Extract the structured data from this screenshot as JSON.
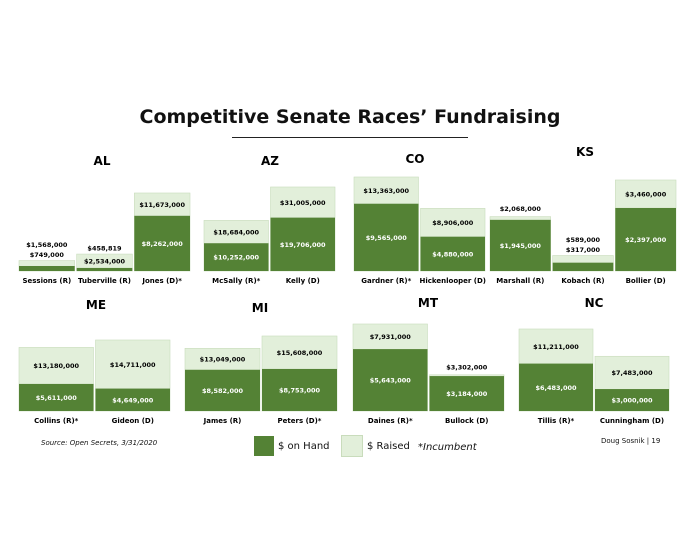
{
  "title": "Competitive Senate Races’ Fundraising",
  "source": "Source: Open Secrets, 3/31/2020",
  "credit": "Doug Sosnik | 19",
  "legend": {
    "on_hand": "$ on Hand",
    "raised": "$ Raised",
    "incumbent_note": "*Incumbent"
  },
  "colors": {
    "on_hand": "#548235",
    "raised": "#e2efda",
    "raised_border": "#c9dcbc"
  },
  "chart_data": {
    "type": "bar",
    "series": [
      {
        "name": "$ on Hand",
        "key": "onhand"
      },
      {
        "name": "$ Raised",
        "key": "raised"
      }
    ],
    "states": [
      {
        "state": "AL",
        "candidates": [
          {
            "name": "Sessions (R)",
            "raised": 1568000,
            "onhand": 749000,
            "raised_label": "$1,568,000",
            "onhand_label": "$749,000"
          },
          {
            "name": "Tuberville (R)",
            "raised": 2534000,
            "onhand": 458819,
            "raised_label": "$2,534,000",
            "onhand_label": "$458,819"
          },
          {
            "name": "Jones (D)*",
            "raised": 11673000,
            "onhand": 8262000,
            "raised_label": "$11,673,000",
            "onhand_label": "$8,262,000"
          }
        ]
      },
      {
        "state": "AZ",
        "candidates": [
          {
            "name": "McSally (R)*",
            "raised": 18684000,
            "onhand": 10252000,
            "raised_label": "$18,684,000",
            "onhand_label": "$10,252,000"
          },
          {
            "name": "Kelly (D)",
            "raised": 31005000,
            "onhand": 19706000,
            "raised_label": "$31,005,000",
            "onhand_label": "$19,706,000"
          }
        ]
      },
      {
        "state": "CO",
        "candidates": [
          {
            "name": "Gardner (R)*",
            "raised": 13363000,
            "onhand": 9565000,
            "raised_label": "$13,363,000",
            "onhand_label": "$9,565,000"
          },
          {
            "name": "Hickenlooper (D)",
            "raised": 8906000,
            "onhand": 4880000,
            "raised_label": "$8,906,000",
            "onhand_label": "$4,880,000"
          }
        ]
      },
      {
        "state": "KS",
        "candidates": [
          {
            "name": "Marshall (R)",
            "raised": 2068000,
            "onhand": 1945000,
            "raised_label": "$2,068,000",
            "onhand_label": "$1,945,000"
          },
          {
            "name": "Kobach (R)",
            "raised": 589000,
            "onhand": 317000,
            "raised_label": "$589,000",
            "onhand_label": "$317,000"
          },
          {
            "name": "Bollier (D)",
            "raised": 3460000,
            "onhand": 2397000,
            "raised_label": "$3,460,000",
            "onhand_label": "$2,397,000"
          }
        ]
      },
      {
        "state": "ME",
        "candidates": [
          {
            "name": "Collins (R)*",
            "raised": 13180000,
            "onhand": 5611000,
            "raised_label": "$13,180,000",
            "onhand_label": "$5,611,000"
          },
          {
            "name": "Gideon (D)",
            "raised": 14711000,
            "onhand": 4649000,
            "raised_label": "$14,711,000",
            "onhand_label": "$4,649,000"
          }
        ]
      },
      {
        "state": "MI",
        "candidates": [
          {
            "name": "James (R)",
            "raised": 13049000,
            "onhand": 8582000,
            "raised_label": "$13,049,000",
            "onhand_label": "$8,582,000"
          },
          {
            "name": "Peters (D)*",
            "raised": 15608000,
            "onhand": 8753000,
            "raised_label": "$15,608,000",
            "onhand_label": "$8,753,000"
          }
        ]
      },
      {
        "state": "MT",
        "candidates": [
          {
            "name": "Daines (R)*",
            "raised": 7931000,
            "onhand": 5643000,
            "raised_label": "$7,931,000",
            "onhand_label": "$5,643,000"
          },
          {
            "name": "Bullock (D)",
            "raised": 3302000,
            "onhand": 3184000,
            "raised_label": "$3,302,000",
            "onhand_label": "$3,184,000"
          }
        ]
      },
      {
        "state": "NC",
        "candidates": [
          {
            "name": "Tillis (R)*",
            "raised": 11211000,
            "onhand": 6483000,
            "raised_label": "$11,211,000",
            "onhand_label": "$6,483,000"
          },
          {
            "name": "Cunningham (D)",
            "raised": 7483000,
            "onhand": 3000000,
            "raised_label": "$7,483,000",
            "onhand_label": "$3,000,000"
          }
        ]
      }
    ]
  }
}
